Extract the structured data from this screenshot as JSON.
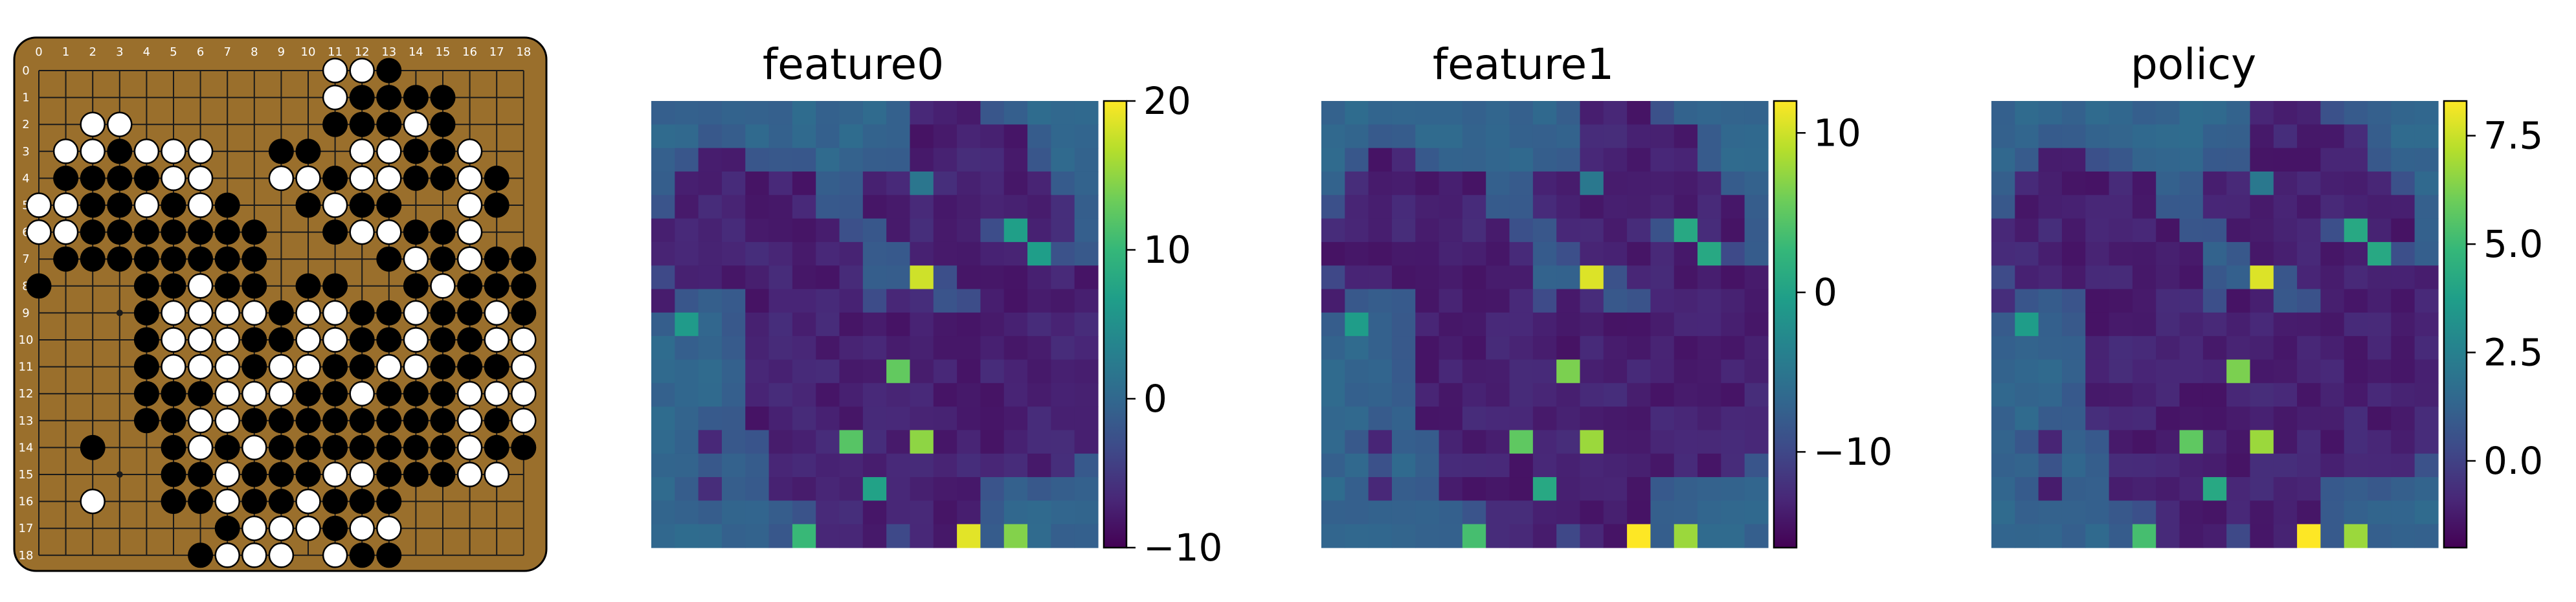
{
  "board": {
    "size": 19,
    "board_color": "#9a6f2c",
    "col_labels": [
      "0",
      "1",
      "2",
      "3",
      "4",
      "5",
      "6",
      "7",
      "8",
      "9",
      "10",
      "11",
      "12",
      "13",
      "14",
      "15",
      "16",
      "17",
      "18"
    ],
    "row_labels": [
      "0",
      "1",
      "2",
      "3",
      "4",
      "5",
      "6",
      "7",
      "8",
      "9",
      "10",
      "11",
      "12",
      "13",
      "14",
      "15",
      "16",
      "17",
      "18"
    ],
    "stones": [
      "...........WWB.....",
      "...........WBBBB...",
      "..WW.......BBBWB...",
      ".WWBWWW..BB.WWBBW..",
      ".BBBBWW..WWBWWBBWB.",
      "WWBBWBWB..BWBB..WB.",
      "WWBBBBBBB..BWWBBW..",
      ".BBBBBBBB....BWBWBB",
      "B...BBWBB.BB..BWBBB",
      "....BWWWWBWWBBWBBWB",
      "....BWWWBBWWBBWBBWW",
      "....BWWWBWWBBWWBBBW",
      "....BBBWWWBBWBBBWWW",
      "....BBWWBBBBBBBBWBW",
      "..B..BWBWBBBBBBBWBB",
      ".....BBWBBBWWBBBWW.",
      "..W..BBWBBWBBB.....",
      ".......BWWWBWW.....",
      "......BWWW.WBB....."
    ]
  },
  "panels": [
    {
      "title": "feature0",
      "vmin": -10,
      "vmax": 20,
      "ticks": [
        {
          "value": 20,
          "label": "20"
        },
        {
          "value": 10,
          "label": "10"
        },
        {
          "value": 0,
          "label": "0"
        },
        {
          "value": -10,
          "label": "−10"
        }
      ]
    },
    {
      "title": "feature1",
      "vmin": -16,
      "vmax": 12,
      "ticks": [
        {
          "value": 10,
          "label": "10"
        },
        {
          "value": 0,
          "label": "0"
        },
        {
          "value": -10,
          "label": "−10"
        }
      ]
    },
    {
      "title": "policy",
      "vmin": -2,
      "vmax": 8.3,
      "ticks": [
        {
          "value": 7.5,
          "label": "7.5"
        },
        {
          "value": 5.0,
          "label": "5.0"
        },
        {
          "value": 2.5,
          "label": "2.5"
        },
        {
          "value": 0.0,
          "label": "0.0"
        }
      ]
    }
  ],
  "colormap": "viridis"
}
